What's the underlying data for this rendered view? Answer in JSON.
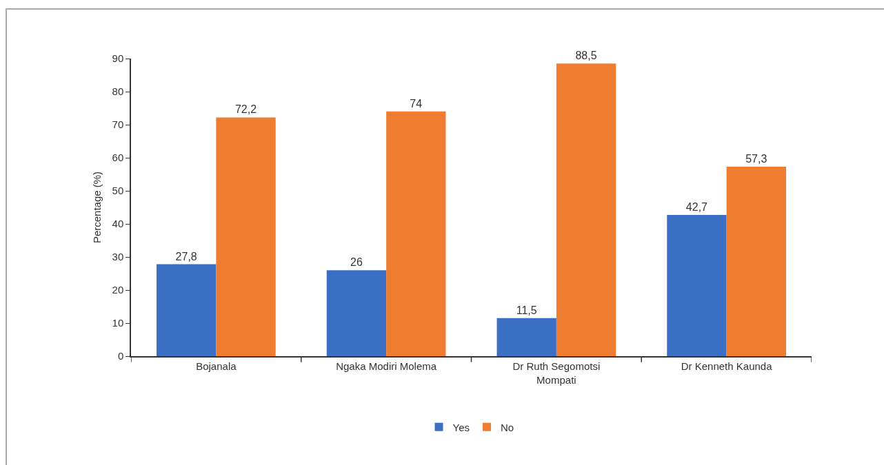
{
  "chart_data": {
    "type": "bar",
    "categories": [
      "Bojanala",
      "Ngaka Modiri Molema",
      "Dr Ruth Segomotsi Mompati",
      "Dr Kenneth Kaunda"
    ],
    "ylabel": "Percentage (%)",
    "ylim": [
      0,
      90
    ],
    "yticks": [
      0,
      10,
      20,
      30,
      40,
      50,
      60,
      70,
      80,
      90
    ],
    "grid": false,
    "legend": "bottom",
    "series": [
      {
        "name": "Yes",
        "color": "#3b6fc4",
        "values": [
          27.8,
          26,
          11.5,
          42.7
        ],
        "value_labels": [
          "27,8",
          "26",
          "11,5",
          "42,7"
        ]
      },
      {
        "name": "No",
        "color": "#ee7d31",
        "values": [
          72.2,
          74,
          88.5,
          57.3
        ],
        "value_labels": [
          "72,2",
          "74",
          "88,5",
          "57,3"
        ]
      }
    ]
  }
}
